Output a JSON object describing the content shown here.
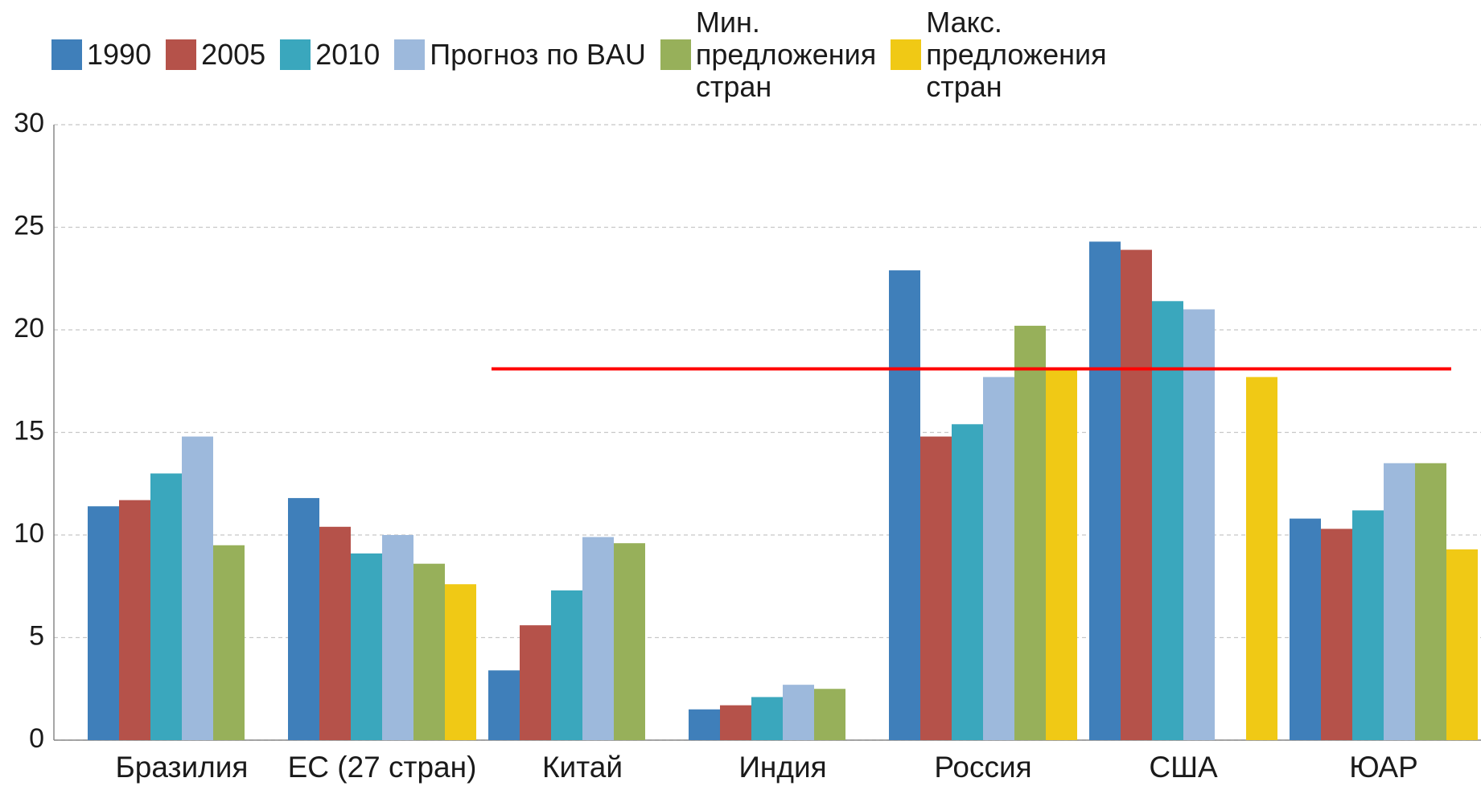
{
  "chart_data": {
    "type": "bar",
    "categories": [
      "Бразилия",
      "ЕС (27 стран)",
      "Китай",
      "Индия",
      "Россия",
      "США",
      "ЮАР"
    ],
    "series": [
      {
        "name": "1990",
        "color": "#3f7fba",
        "values": [
          11.4,
          11.8,
          3.4,
          1.5,
          22.9,
          24.3,
          10.8
        ]
      },
      {
        "name": "2005",
        "color": "#b5524a",
        "values": [
          11.7,
          10.4,
          5.6,
          1.7,
          14.8,
          23.9,
          10.3
        ]
      },
      {
        "name": "2010",
        "color": "#3aa7bd",
        "values": [
          13.0,
          9.1,
          7.3,
          2.1,
          15.4,
          21.4,
          11.2
        ]
      },
      {
        "name": "Прогноз по BAU",
        "color": "#9db9dc",
        "values": [
          14.8,
          10.0,
          9.9,
          2.7,
          17.7,
          21.0,
          13.5
        ]
      },
      {
        "name": "Мин.\nпредложения\nстран",
        "color": "#97b05a",
        "values": [
          9.5,
          8.6,
          9.6,
          2.5,
          20.2,
          null,
          13.5
        ]
      },
      {
        "name": "Макс.\nпредложения\nстран",
        "color": "#f0c915",
        "values": [
          null,
          7.6,
          null,
          null,
          18.1,
          17.7,
          9.3
        ]
      }
    ],
    "reference_line": {
      "value": 18.1,
      "color": "#ff0000"
    },
    "ylim": [
      0,
      30
    ],
    "yticks": [
      0,
      5,
      10,
      15,
      20,
      25,
      30
    ],
    "grid": true
  }
}
